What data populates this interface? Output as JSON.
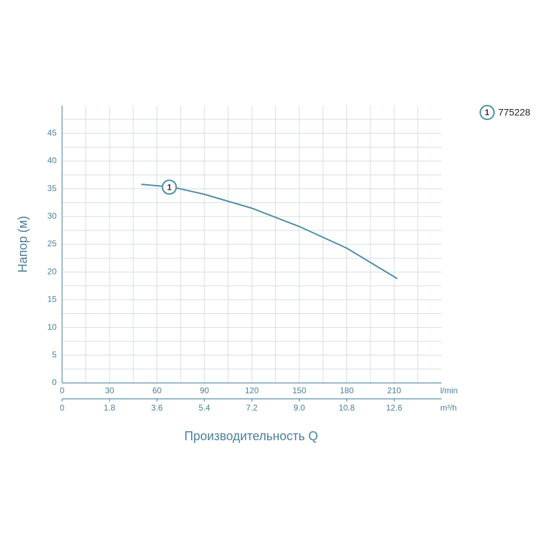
{
  "chart_data": {
    "type": "line",
    "xlabel": "Производительность Q",
    "ylabel": "Напор (м)",
    "x_unit": "l/min",
    "x2_unit": "m³/h",
    "x": [
      50,
      70,
      90,
      120,
      150,
      180,
      212
    ],
    "series": [
      {
        "name": "775228",
        "marker_label": "1",
        "color": "#4e8ca0",
        "values": [
          35.8,
          35.3,
          34.0,
          31.5,
          28.2,
          24.3,
          18.8
        ]
      }
    ],
    "xlim": [
      0,
      240
    ],
    "xticks": [
      0,
      30,
      60,
      90,
      120,
      150,
      180,
      210
    ],
    "x2lim": [
      0,
      14.4
    ],
    "x2ticks": [
      0,
      1.8,
      3.6,
      5.4,
      7.2,
      {
        "value": 9,
        "label": "9.0"
      },
      10.8,
      12.6
    ],
    "ylim": [
      0,
      50
    ],
    "yticks": [
      0,
      5,
      10,
      15,
      20,
      25,
      30,
      35,
      40,
      45
    ],
    "grid": true,
    "legend": "top-right"
  }
}
